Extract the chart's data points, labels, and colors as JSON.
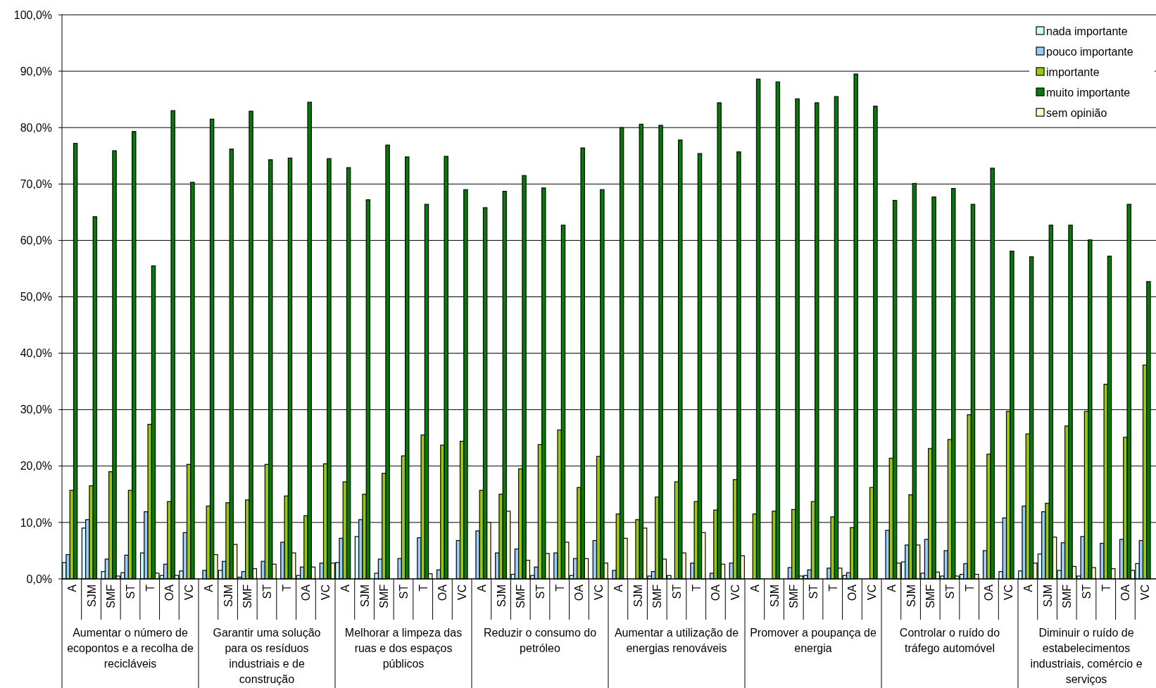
{
  "chart_data": {
    "type": "bar",
    "categories": [
      "A",
      "SJM",
      "SMF",
      "ST",
      "T",
      "OA",
      "VC",
      "A",
      "SJM",
      "SMF",
      "ST",
      "T",
      "OA",
      "VC",
      "A",
      "SJM",
      "SMF",
      "ST",
      "T",
      "OA",
      "VC",
      "A",
      "SJM",
      "SMF",
      "ST",
      "T",
      "OA",
      "VC",
      "A",
      "SJM",
      "SMF",
      "ST",
      "T",
      "OA",
      "VC",
      "A",
      "SJM",
      "SMF",
      "ST",
      "T",
      "OA",
      "VC",
      "A",
      "SJM",
      "SMF",
      "ST",
      "T",
      "OA",
      "VC",
      "A",
      "SJM",
      "SMF",
      "ST",
      "T",
      "OA",
      "VC"
    ],
    "series": [
      {
        "name": "nada importante",
        "color": "#ccffff",
        "values": [
          2.9,
          9.0,
          1.3,
          1.1,
          4.6,
          0.6,
          1.4,
          0,
          1.5,
          0.3,
          0,
          0,
          0.6,
          0,
          2.9,
          7.5,
          1.0,
          0,
          0,
          0,
          0,
          0,
          0,
          0.8,
          0.6,
          0,
          0.6,
          0,
          0,
          0,
          0.5,
          0.6,
          0,
          0,
          0,
          0,
          0,
          0,
          0.6,
          0,
          0.6,
          0,
          0,
          3.0,
          1.0,
          0.5,
          0.8,
          0,
          1.3,
          1.4,
          4.4,
          1.5,
          0.5,
          0,
          0,
          2.7
        ]
      },
      {
        "name": "pouco importante",
        "color": "#99ccff",
        "values": [
          4.3,
          10.5,
          3.5,
          4.2,
          11.9,
          2.6,
          8.2,
          1.5,
          3.1,
          1.3,
          3.1,
          6.5,
          2.1,
          2.8,
          7.2,
          10.5,
          3.5,
          3.6,
          7.3,
          1.6,
          6.8,
          8.5,
          4.6,
          5.3,
          2.1,
          4.6,
          3.6,
          6.8,
          1.5,
          0,
          1.3,
          0,
          2.8,
          1.0,
          2.8,
          0,
          0,
          2.0,
          1.6,
          1.9,
          1.1,
          0,
          8.6,
          6.0,
          7.0,
          5.0,
          2.7,
          5.0,
          10.8,
          12.9,
          11.9,
          6.4,
          7.5,
          6.3,
          7.0,
          6.8
        ]
      },
      {
        "name": "importante",
        "color": "#99cc00",
        "values": [
          15.7,
          16.5,
          19.0,
          15.7,
          27.4,
          13.7,
          20.3,
          12.9,
          13.5,
          14.0,
          20.3,
          14.7,
          11.2,
          20.4,
          17.2,
          15.0,
          18.7,
          21.8,
          25.5,
          23.7,
          24.4,
          15.7,
          15.0,
          19.5,
          23.8,
          26.4,
          16.2,
          21.7,
          11.5,
          10.5,
          14.5,
          17.2,
          13.7,
          12.2,
          17.6,
          11.5,
          12.0,
          12.3,
          13.7,
          11.0,
          9.1,
          16.2,
          21.4,
          14.9,
          23.1,
          24.7,
          29.1,
          22.1,
          29.7,
          25.7,
          13.4,
          27.1,
          29.7,
          34.5,
          25.1,
          37.9
        ]
      },
      {
        "name": "muito importante",
        "color": "#008000",
        "values": [
          77.2,
          64.2,
          75.9,
          79.3,
          55.5,
          83.0,
          70.3,
          81.5,
          76.2,
          82.9,
          74.3,
          74.6,
          84.5,
          74.5,
          72.9,
          67.2,
          76.9,
          74.8,
          66.4,
          74.9,
          69.0,
          65.8,
          68.7,
          71.5,
          69.3,
          62.7,
          76.4,
          69.0,
          80.0,
          80.6,
          80.4,
          77.8,
          75.4,
          84.4,
          75.7,
          88.6,
          88.1,
          85.1,
          84.4,
          85.5,
          89.5,
          83.8,
          67.1,
          70.1,
          67.7,
          69.2,
          66.4,
          72.8,
          58.1,
          57.1,
          62.7,
          62.7,
          60.1,
          57.2,
          66.4,
          52.7
        ]
      },
      {
        "name": "sem opinião",
        "color": "#ffffcc",
        "values": [
          0,
          0,
          0.5,
          0,
          1.0,
          0.6,
          0,
          4.3,
          6.1,
          1.8,
          2.6,
          4.6,
          2.1,
          2.8,
          0,
          0,
          0,
          0,
          0.9,
          0,
          0,
          10.0,
          12.0,
          3.3,
          4.5,
          6.5,
          3.6,
          2.8,
          7.2,
          9.0,
          3.5,
          4.6,
          8.2,
          2.6,
          4.1,
          0,
          0,
          0.5,
          0,
          1.9,
          0,
          0,
          2.8,
          6.0,
          1.2,
          0.5,
          0.8,
          0,
          0,
          2.8,
          7.4,
          2.2,
          2.0,
          1.8,
          1.5,
          0
        ]
      }
    ],
    "annotations": [
      "Aumentar o número de ecopontos e a recolha de recicláveis",
      "Garantir uma solução para os resíduos industriais e de construção",
      "Melhorar a limpeza das ruas e dos espaços públicos",
      "Reduzir o consumo do petróleo",
      "Aumentar a utilização de energias renováveis",
      "Promover a poupança de energia",
      "Controlar o ruído do tráfego automóvel",
      "Diminuir o ruído de estabelecimentos industriais, comércio e serviços"
    ],
    "ylim": [
      0,
      100
    ],
    "yticks": [
      {
        "value": 0,
        "label": "0,0%"
      },
      {
        "value": 10,
        "label": "10,0%"
      },
      {
        "value": 20,
        "label": "20,0%"
      },
      {
        "value": 30,
        "label": "30,0%"
      },
      {
        "value": 40,
        "label": "40,0%"
      },
      {
        "value": 50,
        "label": "50,0%"
      },
      {
        "value": 60,
        "label": "60,0%"
      },
      {
        "value": 70,
        "label": "70,0%"
      },
      {
        "value": 80,
        "label": "80,0%"
      },
      {
        "value": 90,
        "label": "90,0%"
      },
      {
        "value": 100,
        "label": "100,0%"
      }
    ],
    "grid": "y",
    "legend": "top right"
  }
}
